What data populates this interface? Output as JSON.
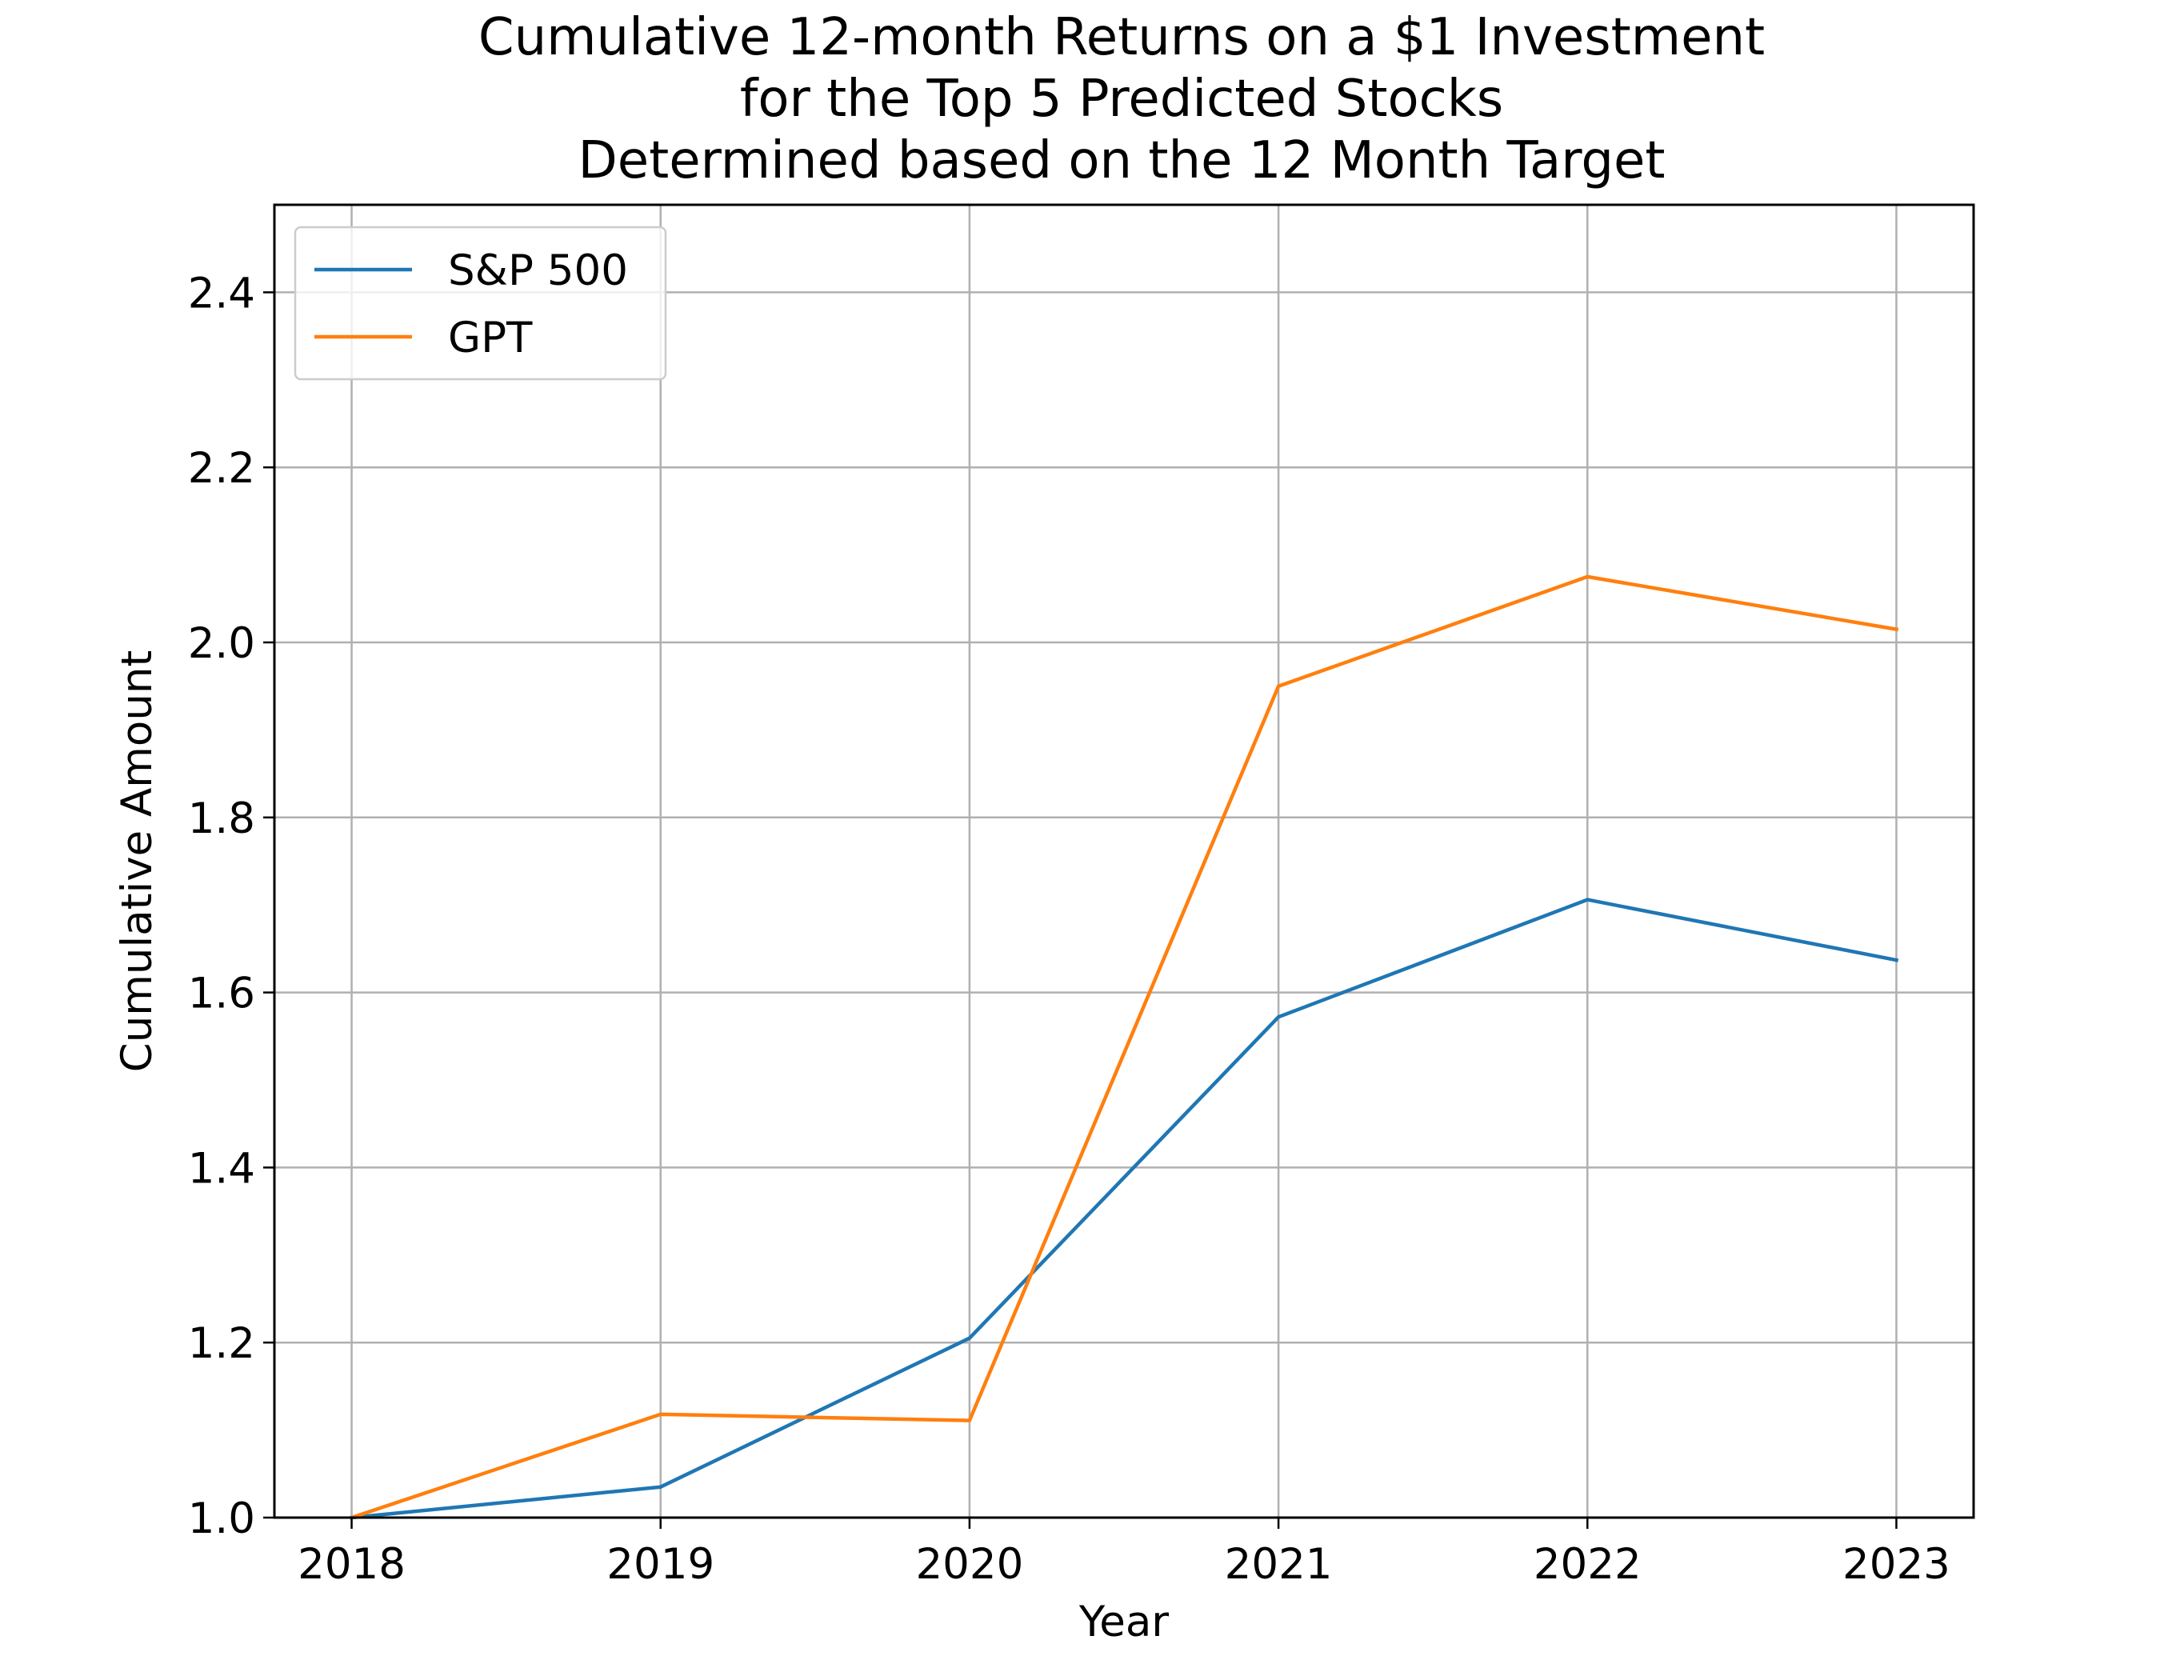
{
  "chart_data": {
    "type": "line",
    "title": [
      "Cumulative 12-month Returns on a $1 Investment",
      "for the Top 5 Predicted Stocks",
      "Determined based on the 12 Month Target"
    ],
    "xlabel": "Year",
    "ylabel": "Cumulative Amount",
    "x": [
      2018,
      2019,
      2020,
      2021,
      2022,
      2023
    ],
    "x_tick_labels": [
      "2018",
      "2019",
      "2020",
      "2021",
      "2022",
      "2023"
    ],
    "xlim": [
      2017.75,
      2023.25
    ],
    "ylim": [
      1.0,
      2.5
    ],
    "y_ticks": [
      1.0,
      1.2,
      1.4,
      1.6,
      1.8,
      2.0,
      2.2,
      2.4
    ],
    "y_tick_labels": [
      "1.0",
      "1.2",
      "1.4",
      "1.6",
      "1.8",
      "2.0",
      "2.2",
      "2.4"
    ],
    "grid": true,
    "legend_position": "top-left",
    "series": [
      {
        "name": "S&P 500",
        "color": "#1f77b4",
        "values": [
          1.0,
          1.035,
          1.205,
          1.572,
          1.706,
          1.637
        ]
      },
      {
        "name": "GPT",
        "color": "#ff7f0e",
        "values": [
          1.0,
          1.118,
          1.111,
          1.95,
          2.075,
          2.015
        ]
      }
    ]
  }
}
